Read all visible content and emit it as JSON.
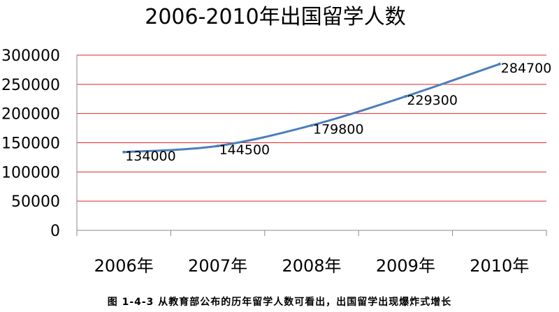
{
  "chart_data": {
    "type": "line",
    "title": "2006-2010年出国留学人数",
    "categories": [
      "2006年",
      "2007年",
      "2008年",
      "2009年",
      "2010年"
    ],
    "series": [
      {
        "values": [
          134000,
          144500,
          179800,
          229300,
          284700
        ],
        "labels": [
          "134000",
          "144500",
          "179800",
          "229300",
          "284700"
        ]
      }
    ],
    "y_ticks": [
      "0",
      "50000",
      "100000",
      "150000",
      "200000",
      "250000",
      "300000"
    ],
    "ylim": [
      0,
      300000
    ],
    "grid": true,
    "legend": "none"
  },
  "caption": "图 1-4-3 从教育部公布的历年留学人数可看出，出国留学出现爆炸式增长",
  "colors": {
    "line": "#4a7ebb",
    "grid": "#e32424",
    "axis": "#888888",
    "text": "#000000"
  }
}
